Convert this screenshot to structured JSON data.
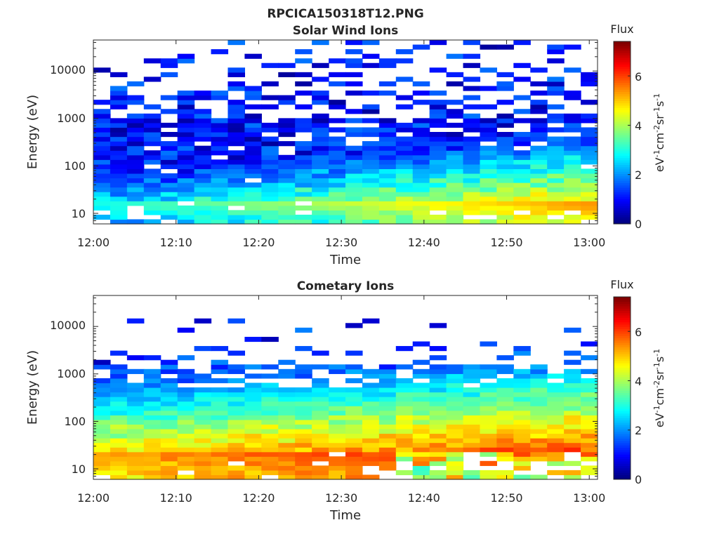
{
  "figure": {
    "title": "RPCICA150318T12.PNG"
  },
  "colormap": "jet",
  "chart_data": [
    {
      "type": "heatmap",
      "title": "Solar Wind Ions",
      "xlabel": "Time",
      "ylabel": "Energy (eV)",
      "x_ticks": [
        "12:00",
        "12:10",
        "12:20",
        "12:30",
        "12:40",
        "12:50",
        "13:00"
      ],
      "x_range": [
        "12:00",
        "13:01"
      ],
      "y_scale": "log",
      "y_ticks": [
        "10",
        "100",
        "1000",
        "10000"
      ],
      "y_range": [
        6,
        45000
      ],
      "colorbar": {
        "label": "Flux",
        "unit": "eV-1cm-2sr-1s-1",
        "range": [
          0,
          7.4
        ],
        "ticks": [
          "0",
          "2",
          "4",
          "6"
        ]
      },
      "time_bins": 30,
      "energy_bins": 40,
      "features": {
        "low_band_peak_eV": 18,
        "low_band_peak_flux": 5.5,
        "high_energy_flux": 1.0
      }
    },
    {
      "type": "heatmap",
      "title": "Cometary Ions",
      "xlabel": "Time",
      "ylabel": "Energy (eV)",
      "x_ticks": [
        "12:00",
        "12:10",
        "12:20",
        "12:30",
        "12:40",
        "12:50",
        "13:00"
      ],
      "x_range": [
        "12:00",
        "13:01"
      ],
      "y_scale": "log",
      "y_ticks": [
        "10",
        "100",
        "1000",
        "10000"
      ],
      "y_range": [
        6,
        45000
      ],
      "colorbar": {
        "label": "Flux",
        "unit": "eV-1cm-2sr-1s-1",
        "range": [
          0,
          7.4
        ],
        "ticks": [
          "0",
          "2",
          "4",
          "6"
        ]
      },
      "time_bins": 30,
      "energy_bins": 40,
      "features": {
        "low_band_peak_eV": 22,
        "low_band_peak_flux": 6.3,
        "high_energy_flux": 1.0
      }
    }
  ]
}
